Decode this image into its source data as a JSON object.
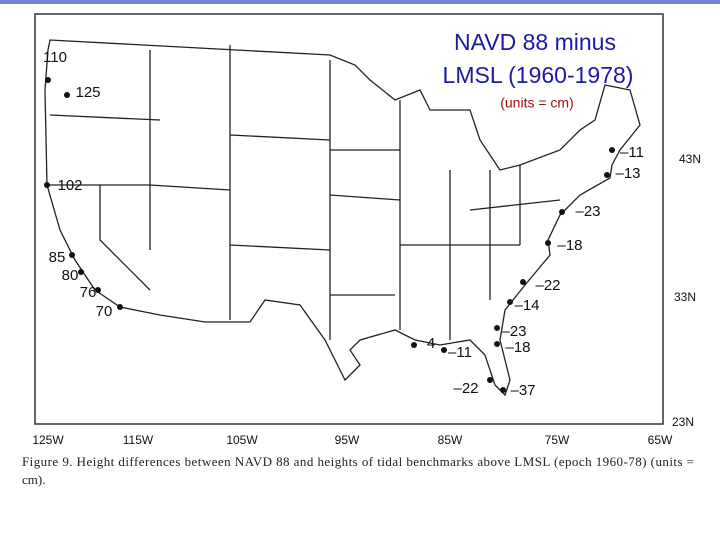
{
  "title": {
    "line1": "NAVD 88 minus",
    "line2": "LMSL (1960-1978)",
    "units": "(units = cm)"
  },
  "stations": [
    "110",
    "125",
    "102",
    "85",
    "80",
    "76",
    "70",
    "–11",
    "–13",
    "–23",
    "–18",
    "–22",
    "–14",
    "–23",
    "–18",
    "4",
    "–11",
    "–22",
    "–37"
  ],
  "latitudes": [
    "43N",
    "33N",
    "23N"
  ],
  "longitudes": [
    "125W",
    "115W",
    "105W",
    "95W",
    "85W",
    "75W",
    "65W"
  ],
  "caption": [
    "Figure 9. Height differences between NAVD 88 and heights of tidal benchmarks above LMSL (epoch 1960-78) (units =",
    "cm)."
  ]
}
